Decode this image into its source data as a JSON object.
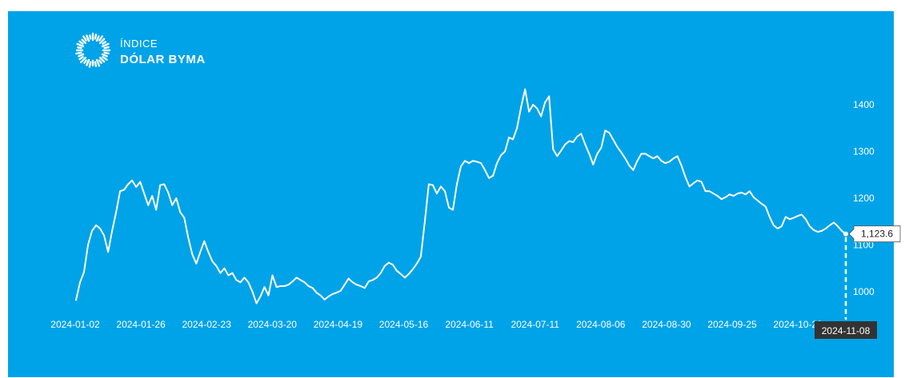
{
  "brand": {
    "line1": "ÍNDICE",
    "line2": "DÓLAR BYMA",
    "logo_icon": "sunburst-logo-icon",
    "colors": {
      "background": "#00a3e8",
      "line": "#ffffff",
      "tooltip_date_bg": "#333333",
      "tooltip_value_bg": "#ffffff"
    }
  },
  "chart_data": {
    "type": "line",
    "title": "",
    "xlabel": "",
    "ylabel": "",
    "ylim": [
      960,
      1440
    ],
    "y_ticks": [
      1000,
      1100,
      1200,
      1300,
      1400
    ],
    "grid": false,
    "x_tick_labels": [
      "2024-01-02",
      "2024-01-26",
      "2024-02-23",
      "2024-03-20",
      "2024-04-19",
      "2024-05-16",
      "2024-06-11",
      "2024-07-11",
      "2024-08-06",
      "2024-08-30",
      "2024-09-25",
      "2024-10-23"
    ],
    "series": [
      {
        "values": [
          982,
          1020,
          1042,
          1100,
          1130,
          1142,
          1135,
          1120,
          1085,
          1130,
          1170,
          1215,
          1218,
          1230,
          1238,
          1224,
          1235,
          1210,
          1185,
          1205,
          1175,
          1228,
          1230,
          1212,
          1185,
          1200,
          1170,
          1158,
          1115,
          1080,
          1060,
          1085,
          1108,
          1085,
          1065,
          1055,
          1040,
          1050,
          1035,
          1040,
          1025,
          1020,
          1030,
          1020,
          1000,
          975,
          990,
          1010,
          992,
          1035,
          1010,
          1012,
          1012,
          1015,
          1022,
          1030,
          1025,
          1020,
          1012,
          1008,
          998,
          992,
          983,
          990,
          995,
          998,
          1002,
          1015,
          1028,
          1020,
          1015,
          1012,
          1008,
          1022,
          1025,
          1030,
          1040,
          1055,
          1062,
          1058,
          1045,
          1038,
          1030,
          1038,
          1048,
          1060,
          1075,
          1150,
          1230,
          1228,
          1210,
          1225,
          1215,
          1180,
          1175,
          1230,
          1268,
          1280,
          1275,
          1280,
          1278,
          1275,
          1260,
          1243,
          1248,
          1275,
          1292,
          1300,
          1330,
          1326,
          1350,
          1395,
          1433,
          1385,
          1400,
          1392,
          1375,
          1405,
          1418,
          1305,
          1290,
          1302,
          1315,
          1322,
          1320,
          1332,
          1338,
          1315,
          1295,
          1272,
          1295,
          1308,
          1345,
          1340,
          1325,
          1310,
          1298,
          1285,
          1270,
          1260,
          1280,
          1295,
          1295,
          1290,
          1285,
          1290,
          1280,
          1275,
          1278,
          1285,
          1290,
          1270,
          1245,
          1225,
          1232,
          1238,
          1235,
          1215,
          1215,
          1210,
          1205,
          1198,
          1202,
          1208,
          1205,
          1210,
          1212,
          1208,
          1215,
          1202,
          1195,
          1188,
          1182,
          1160,
          1142,
          1135,
          1140,
          1160,
          1155,
          1158,
          1162,
          1165,
          1155,
          1140,
          1132,
          1128,
          1130,
          1135,
          1142,
          1148,
          1140,
          1130,
          1123.6
        ]
      }
    ],
    "tooltip": {
      "date": "2024-11-08",
      "value": "1,123.6"
    }
  }
}
